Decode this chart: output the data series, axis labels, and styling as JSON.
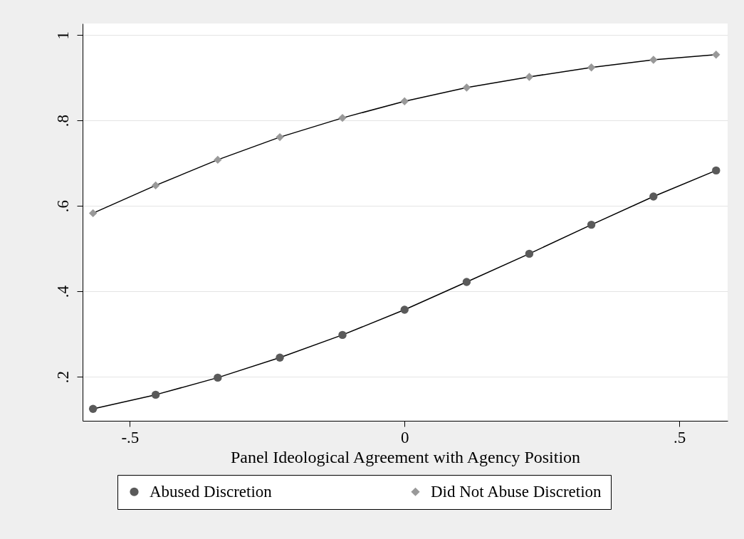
{
  "chart_data": {
    "type": "line",
    "xlabel": "Panel Ideological Agreement with Agency Position",
    "x": [
      -0.567,
      -0.453,
      -0.34,
      -0.227,
      -0.113,
      0,
      0.113,
      0.227,
      0.34,
      0.453,
      0.567
    ],
    "series": [
      {
        "name": "Abused Discretion",
        "color": "#5a5a5a",
        "marker": "circle",
        "values": [
          0.125,
          0.158,
          0.198,
          0.245,
          0.298,
          0.357,
          0.422,
          0.488,
          0.556,
          0.622,
          0.683
        ]
      },
      {
        "name": "Did Not Abuse Discretion",
        "color": "#999999",
        "marker": "diamond",
        "values": [
          0.583,
          0.648,
          0.708,
          0.761,
          0.806,
          0.845,
          0.877,
          0.902,
          0.924,
          0.942,
          0.954
        ]
      }
    ],
    "xlim": [
      -0.586,
      0.588
    ],
    "ylim": [
      0.097,
      1.027
    ],
    "xticks": [
      {
        "value": -0.5,
        "label": "-.5"
      },
      {
        "value": 0,
        "label": "0"
      },
      {
        "value": 0.5,
        "label": ".5"
      }
    ],
    "yticks": [
      {
        "value": 0.2,
        "label": ".2"
      },
      {
        "value": 0.4,
        "label": ".4"
      },
      {
        "value": 0.6,
        "label": ".6"
      },
      {
        "value": 0.8,
        "label": ".8"
      },
      {
        "value": 1,
        "label": "1"
      }
    ],
    "grid": "y",
    "legend": "bottom",
    "line_style": "solid"
  }
}
